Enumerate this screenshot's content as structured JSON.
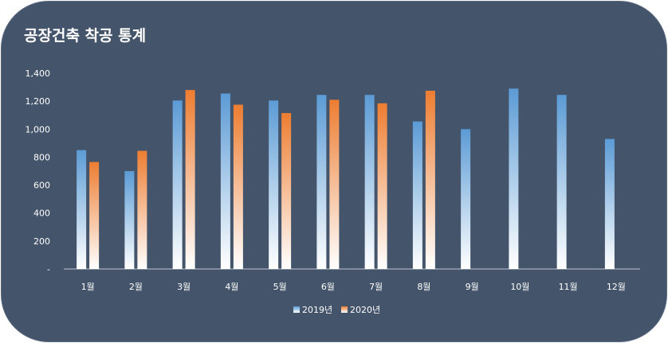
{
  "chart_data": {
    "type": "bar",
    "title": "공장건축 착공 통계",
    "categories": [
      "1월",
      "2월",
      "3월",
      "4월",
      "5월",
      "6월",
      "7월",
      "8월",
      "9월",
      "10월",
      "11월",
      "12월"
    ],
    "series": [
      {
        "name": "2019년",
        "values": [
          850,
          700,
          1205,
          1255,
          1205,
          1245,
          1245,
          1055,
          1000,
          1290,
          1245,
          930
        ],
        "color_top": "#5b9bd5",
        "color_bottom": "#ffffff"
      },
      {
        "name": "2020년",
        "values": [
          765,
          845,
          1280,
          1175,
          1115,
          1210,
          1185,
          1275,
          null,
          null,
          null,
          null
        ],
        "color_top": "#ed7d31",
        "color_bottom": "#ffffff"
      }
    ],
    "ylim": [
      0,
      1400
    ],
    "yticks": [
      0,
      200,
      400,
      600,
      800,
      1000,
      1200,
      1400
    ],
    "ytick_labels": [
      "-",
      "200",
      "400",
      "600",
      "800",
      "1,000",
      "1,200",
      "1,400"
    ],
    "xlabel": "",
    "ylabel": "",
    "legend_position": "bottom",
    "grid": false
  },
  "colors": {
    "background": "#44546a",
    "text": "#ffffff"
  }
}
